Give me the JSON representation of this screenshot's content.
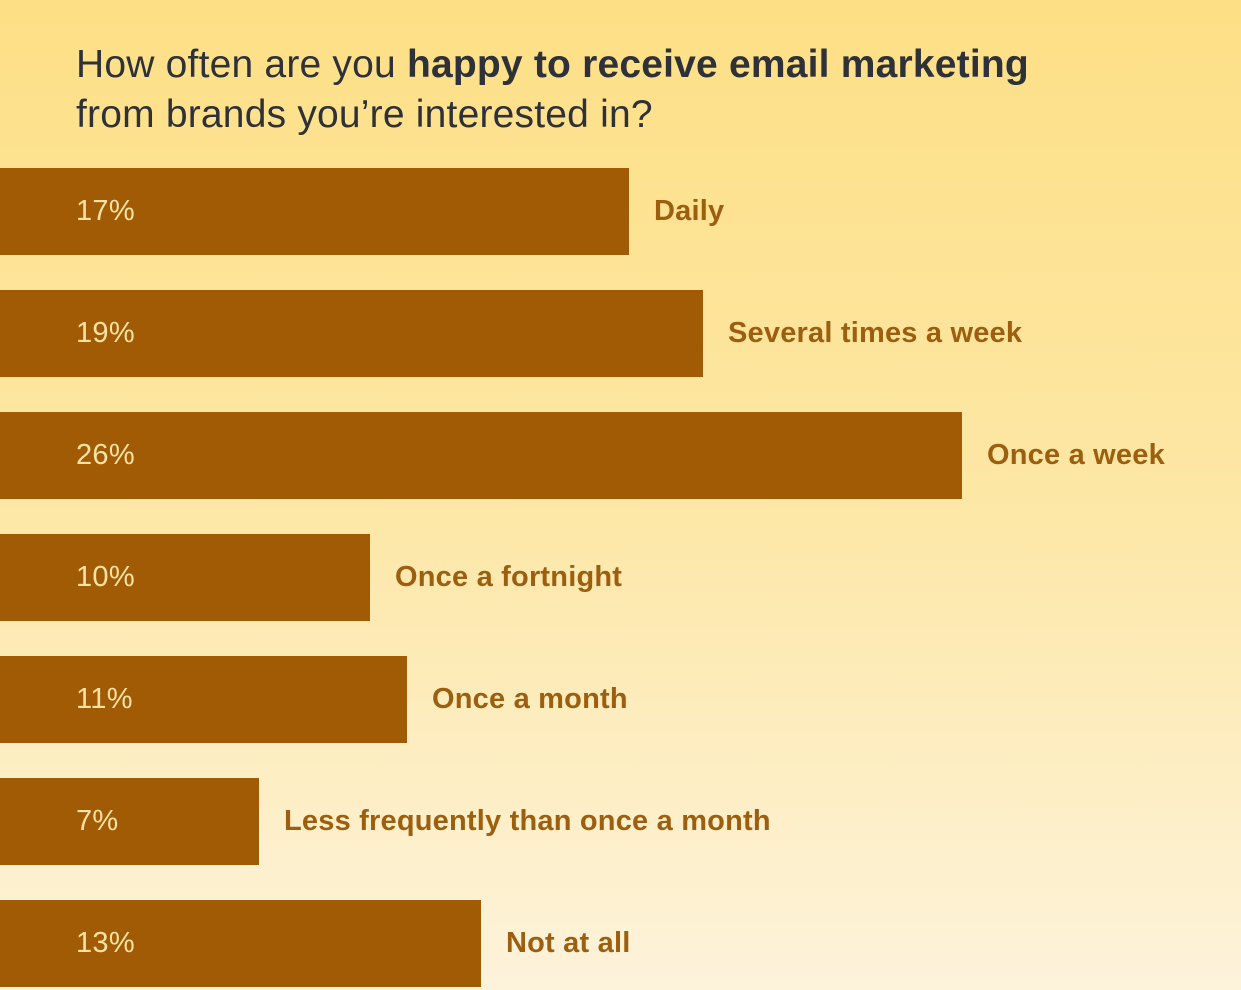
{
  "title": {
    "part1": "How often are you ",
    "part2_bold": "happy to receive email marketing",
    "part3": " from brands you’re interested in?"
  },
  "colors": {
    "background_top": "#FDDF85",
    "background_bottom": "#FDF3DB",
    "bar": "#A05B04",
    "bar_value_text": "#FAE1A4",
    "category_label_text": "#9C5F10",
    "title_text": "#2F3138"
  },
  "chart_data": {
    "type": "bar",
    "orientation": "horizontal",
    "title": "How often are you happy to receive email marketing from brands you’re interested in?",
    "value_unit": "percent",
    "axes_visible": false,
    "grid": false,
    "legend": "none",
    "value_label_position": "inside-bar-left",
    "category_label_position": "right-of-bar",
    "xlim": [
      0,
      33
    ],
    "categories": [
      "Daily",
      "Several times a week",
      "Once a week",
      "Once a fortnight",
      "Once a month",
      "Less frequently than once a month",
      "Not at all"
    ],
    "values": [
      17,
      19,
      26,
      10,
      11,
      7,
      13
    ],
    "rows": [
      {
        "label": "Daily",
        "value": 17,
        "value_label": "17%"
      },
      {
        "label": "Several times a week",
        "value": 19,
        "value_label": "19%"
      },
      {
        "label": "Once a week",
        "value": 26,
        "value_label": "26%"
      },
      {
        "label": "Once a fortnight",
        "value": 10,
        "value_label": "10%"
      },
      {
        "label": "Once a month",
        "value": 11,
        "value_label": "11%"
      },
      {
        "label": "Less frequently than once a month",
        "value": 7,
        "value_label": "7%"
      },
      {
        "label": "Not at all",
        "value": 13,
        "value_label": "13%"
      }
    ]
  }
}
